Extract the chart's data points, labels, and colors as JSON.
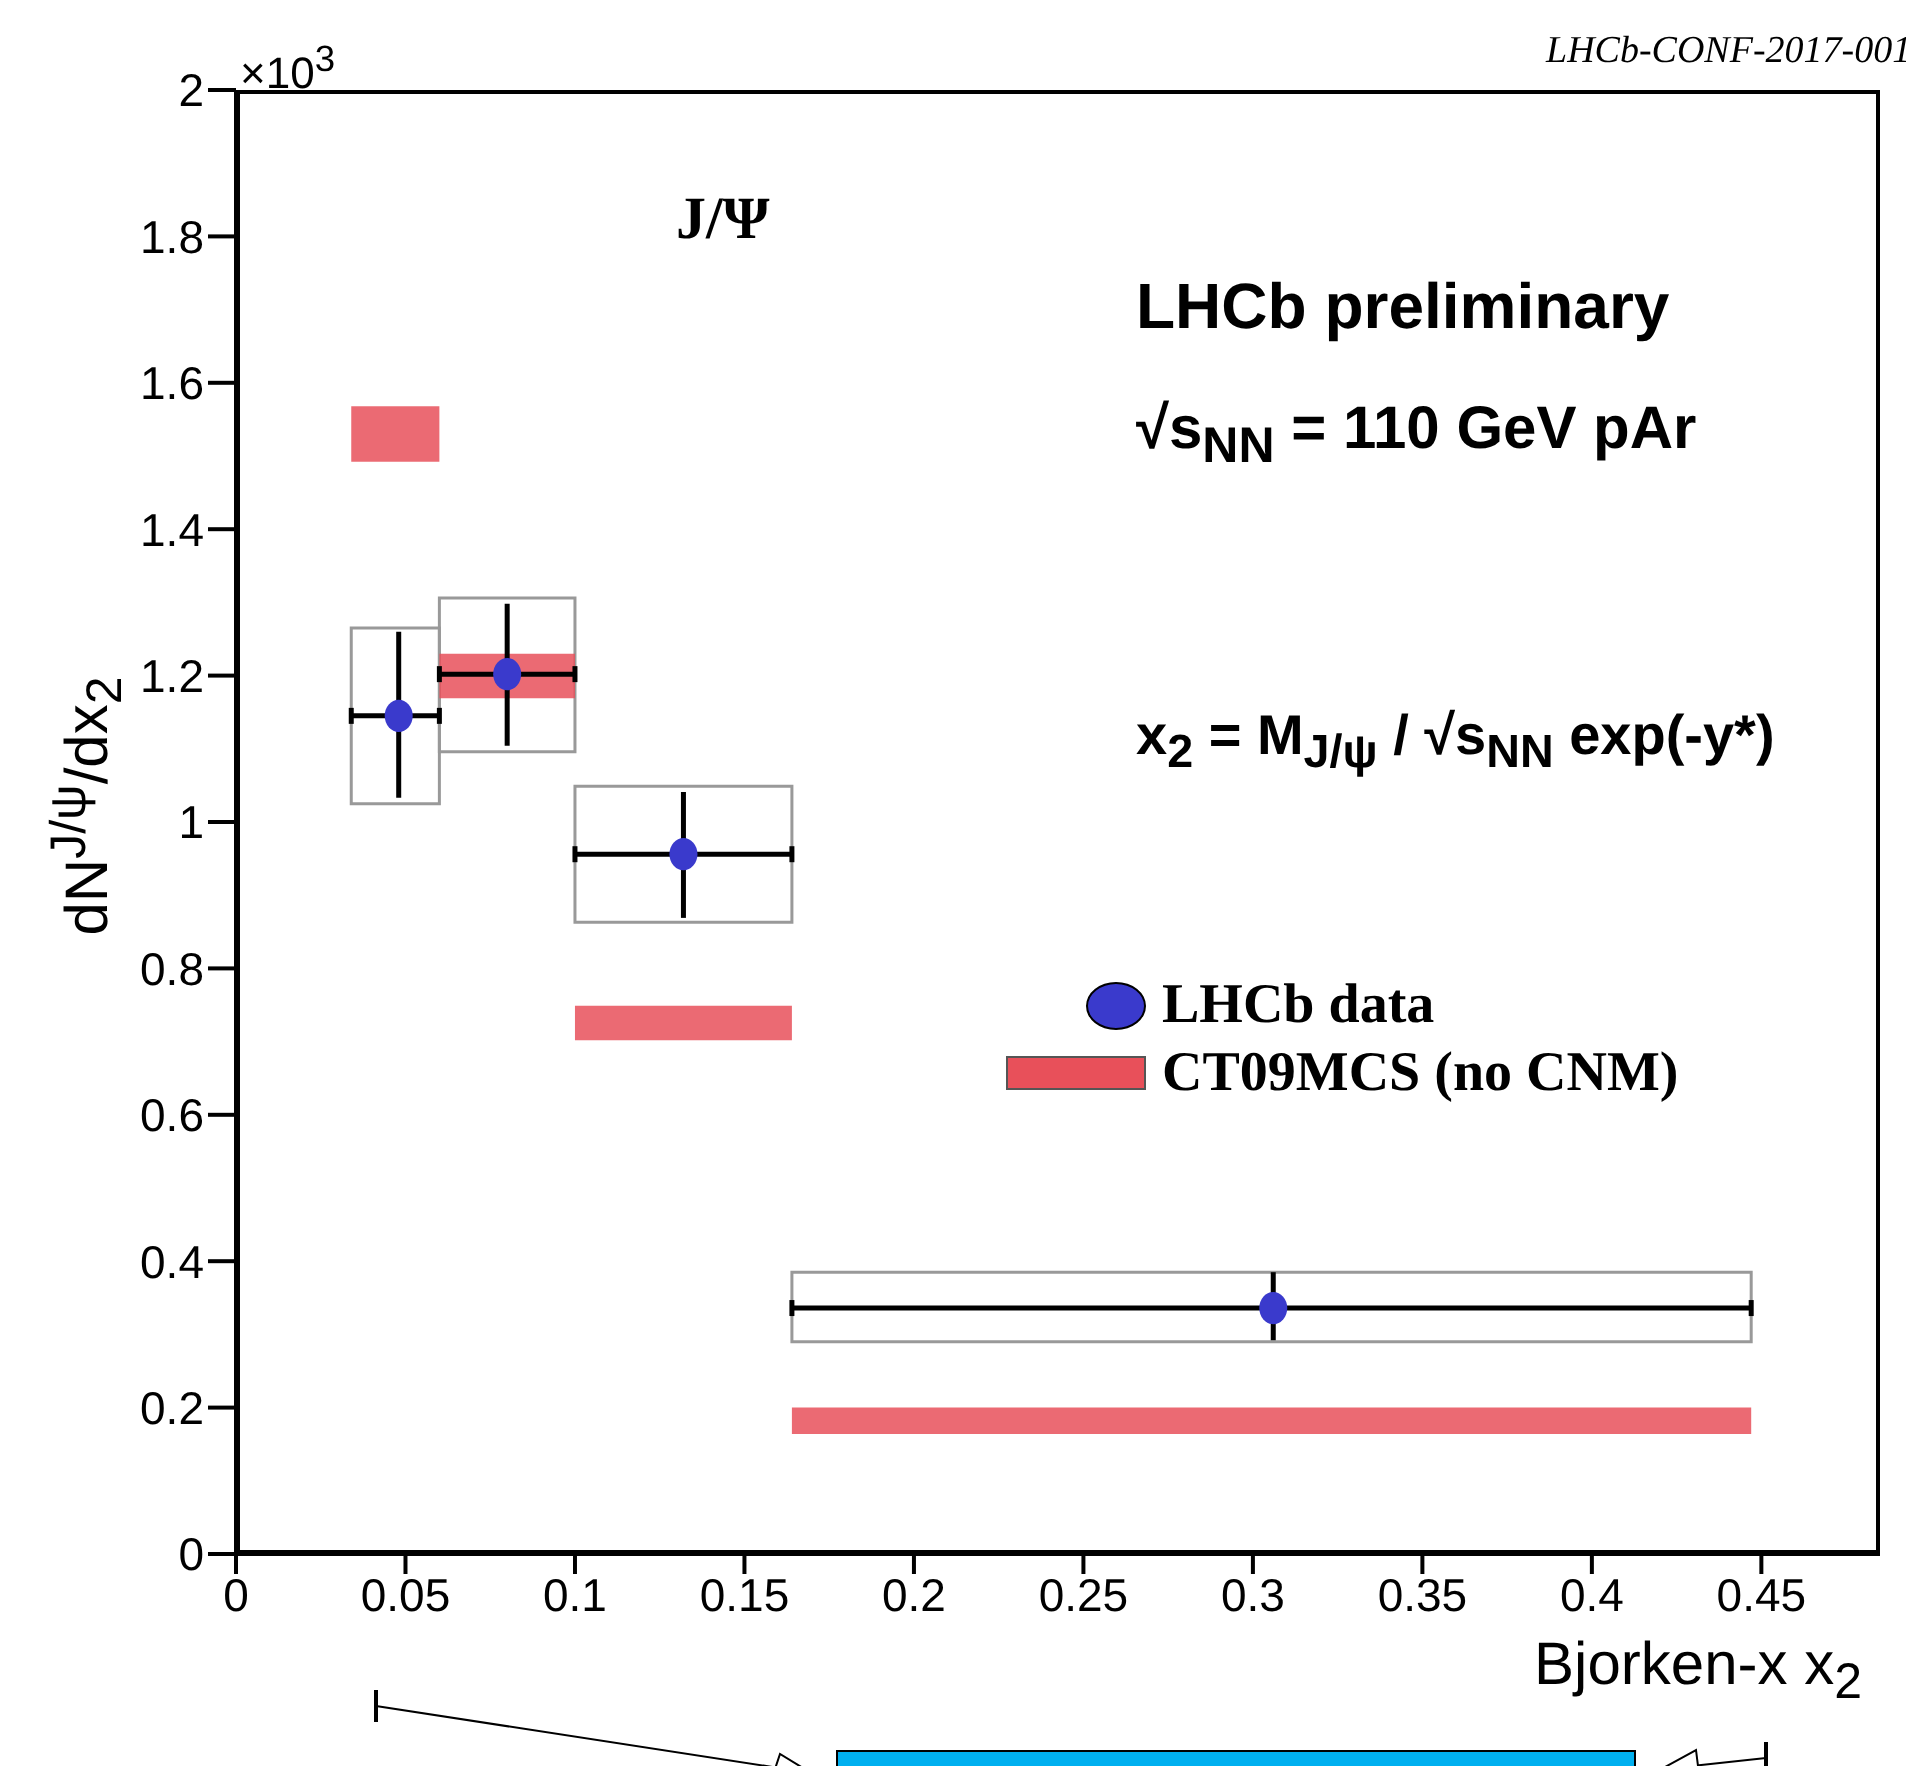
{
  "chart_data": {
    "type": "histogram",
    "xlabel": "Bjorken-x x$_{2}$",
    "ylabel": "dN$^{J/ψ}$/dx$_{2}$",
    "xlim": [
      0,
      0.485
    ],
    "xticks": [
      0,
      0.05,
      0.1,
      0.15,
      0.2,
      0.25,
      0.3,
      0.35,
      0.4,
      0.45
    ],
    "ylim": [
      0,
      2
    ],
    "yticks": [
      0,
      0.2,
      0.4,
      0.6,
      0.8,
      1,
      1.2,
      1.4,
      1.6,
      1.8,
      2
    ],
    "legend": "right",
    "marker": "circle",
    "annotations": [
      "LHCb-CONF-2017-001",
      "×10$^{3}$",
      "J/Ψ",
      "LHCb preliminary",
      "√s$_{NN}$ = 110 GeV pAr",
      "x$_{2}$ = M$_{J/ψ}$ / √s$_{NN}$ exp(-y*)"
    ],
    "series": [
      {
        "color": "#999999",
        "bins": [
          0.034,
          0.06,
          0.1,
          0.164,
          0.447
        ],
        "base": [
          1.025,
          1.096,
          0.863,
          0.29
        ],
        "values": [
          0.24,
          0.21,
          0.186,
          0.095
        ]
      },
      {
        "name": "CT09MCS (no CNM)",
        "color": "#e8505a",
        "bins": [
          0.034,
          0.06,
          0.1,
          0.164,
          0.447
        ],
        "base": [
          1.492,
          1.169,
          0.702,
          0.164
        ],
        "values": [
          0.076,
          0.061,
          0.047,
          0.036
        ]
      },
      {
        "name": "LHCb data",
        "type": "scatter",
        "color": "#3a3acc",
        "x": [
          0.048,
          0.08,
          0.132,
          0.306
        ],
        "values": [
          1.145,
          1.202,
          0.956,
          0.336
        ],
        "errors": [
          [
            1.033,
            1.26
          ],
          [
            1.104,
            1.298
          ],
          [
            0.869,
            1.041
          ],
          [
            0.292,
            0.385
          ]
        ],
        "xerrors": [
          [
            0.034,
            0.06
          ],
          [
            0.06,
            0.1
          ],
          [
            0.1,
            0.164
          ],
          [
            0.164,
            0.447
          ]
        ]
      }
    ]
  }
}
